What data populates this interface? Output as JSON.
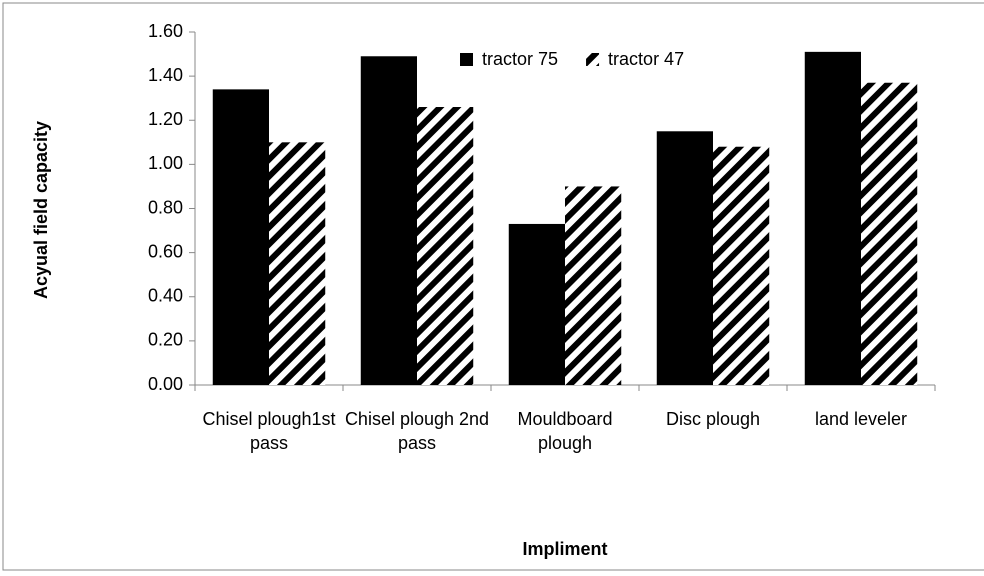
{
  "chart_data": {
    "type": "bar",
    "y_label": "Acyual field capacity",
    "x_label": "Impliment",
    "categories": [
      "Chisel plough1st pass",
      "Chisel plough 2nd pass",
      "Mouldboard plough",
      "Disc plough",
      "land leveler"
    ],
    "series": [
      {
        "name": "tractor 75",
        "color": "#000000",
        "pattern": "solid",
        "values": [
          1.34,
          1.49,
          0.73,
          1.15,
          1.51
        ]
      },
      {
        "name": "tractor 47",
        "color": "#000000",
        "pattern": "hatch",
        "values": [
          1.1,
          1.26,
          0.9,
          1.08,
          1.37
        ]
      }
    ],
    "ylim": [
      0,
      1.6
    ],
    "yticks": [
      {
        "value": 0,
        "label": "0.00"
      },
      {
        "value": 0.2,
        "label": "0.20"
      },
      {
        "value": 0.4,
        "label": "0.40"
      },
      {
        "value": 0.6,
        "label": "0.60"
      },
      {
        "value": 0.8,
        "label": "0.80"
      },
      {
        "value": 1.0,
        "label": "1.00"
      },
      {
        "value": 1.2,
        "label": "1.20"
      },
      {
        "value": 1.4,
        "label": "1.40"
      },
      {
        "value": 1.6,
        "label": "1.60"
      }
    ],
    "grid": false,
    "legend": "top"
  }
}
